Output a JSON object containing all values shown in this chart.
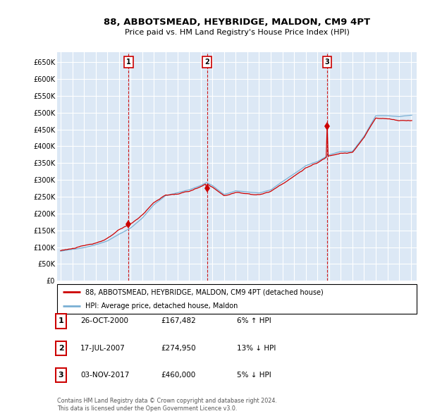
{
  "title": "88, ABBOTSMEAD, HEYBRIDGE, MALDON, CM9 4PT",
  "subtitle": "Price paid vs. HM Land Registry's House Price Index (HPI)",
  "ytick_labels": [
    "£0",
    "£50K",
    "£100K",
    "£150K",
    "£200K",
    "£250K",
    "£300K",
    "£350K",
    "£400K",
    "£450K",
    "£500K",
    "£550K",
    "£600K",
    "£650K"
  ],
  "ytick_values": [
    0,
    50000,
    100000,
    150000,
    200000,
    250000,
    300000,
    350000,
    400000,
    450000,
    500000,
    550000,
    600000,
    650000
  ],
  "ylim": [
    0,
    680000
  ],
  "sale_color": "#cc0000",
  "hpi_color": "#7ab0d4",
  "vline_color": "#cc0000",
  "background_color": "#dce8f5",
  "grid_color": "#ffffff",
  "legend_entries": [
    "88, ABBOTSMEAD, HEYBRIDGE, MALDON, CM9 4PT (detached house)",
    "HPI: Average price, detached house, Maldon"
  ],
  "transactions": [
    {
      "num": 1,
      "date": "26-OCT-2000",
      "price": "£167,482",
      "change": "6% ↑ HPI",
      "year": 2000.82,
      "price_val": 167482
    },
    {
      "num": 2,
      "date": "17-JUL-2007",
      "price": "£274,950",
      "change": "13% ↓ HPI",
      "year": 2007.54,
      "price_val": 274950
    },
    {
      "num": 3,
      "date": "03-NOV-2017",
      "price": "£460,000",
      "change": "5% ↓ HPI",
      "year": 2017.84,
      "price_val": 460000
    }
  ],
  "footnote1": "Contains HM Land Registry data © Crown copyright and database right 2024.",
  "footnote2": "This data is licensed under the Open Government Licence v3.0."
}
